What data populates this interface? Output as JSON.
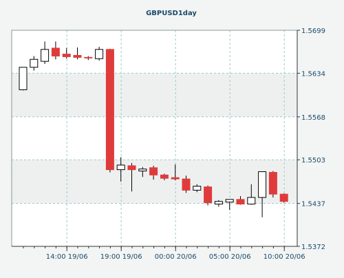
{
  "chart_data": {
    "type": "candlestick",
    "title": "GBPUSD1day",
    "xlabel": "",
    "ylabel": "",
    "ylim": [
      1.5372,
      1.5699
    ],
    "y_ticks": [
      "1.5699",
      "1.5634",
      "1.5568",
      "1.5503",
      "1.5437",
      "1.5372"
    ],
    "x_ticks": [
      "14:00 19/06",
      "19:00 19/06",
      "00:00 20/06",
      "05:00 20/06",
      "10:00 20/06"
    ],
    "grid": true,
    "colors": {
      "background": "#f3f4f4",
      "plot_band_light": "#ffffff",
      "plot_band_shaded": "#eef0f0",
      "grid": "#9cc8c8",
      "axis": "#333333",
      "tick_label": "#1a4a6a",
      "title": "#1a4a6a",
      "up_fill": "#ffffff",
      "down_fill": "#e03b3b",
      "outline": "#000000"
    },
    "candles": [
      {
        "open": 1.5609,
        "high": 1.5643,
        "low": 1.5608,
        "close": 1.5643
      },
      {
        "open": 1.5643,
        "high": 1.566,
        "low": 1.5638,
        "close": 1.5655
      },
      {
        "open": 1.5652,
        "high": 1.5682,
        "low": 1.5648,
        "close": 1.567
      },
      {
        "open": 1.5672,
        "high": 1.5682,
        "low": 1.5655,
        "close": 1.566
      },
      {
        "open": 1.5663,
        "high": 1.5672,
        "low": 1.5656,
        "close": 1.5659
      },
      {
        "open": 1.5661,
        "high": 1.5673,
        "low": 1.5655,
        "close": 1.5658
      },
      {
        "open": 1.5658,
        "high": 1.566,
        "low": 1.5654,
        "close": 1.5657
      },
      {
        "open": 1.5656,
        "high": 1.5674,
        "low": 1.5653,
        "close": 1.567
      },
      {
        "open": 1.567,
        "high": 1.5671,
        "low": 1.5484,
        "close": 1.5488
      },
      {
        "open": 1.5488,
        "high": 1.5507,
        "low": 1.547,
        "close": 1.5495
      },
      {
        "open": 1.5494,
        "high": 1.5498,
        "low": 1.5455,
        "close": 1.5488
      },
      {
        "open": 1.5486,
        "high": 1.5492,
        "low": 1.5477,
        "close": 1.5489
      },
      {
        "open": 1.5491,
        "high": 1.5494,
        "low": 1.5473,
        "close": 1.548
      },
      {
        "open": 1.548,
        "high": 1.5482,
        "low": 1.5472,
        "close": 1.5475
      },
      {
        "open": 1.5476,
        "high": 1.5496,
        "low": 1.5472,
        "close": 1.5474
      },
      {
        "open": 1.5474,
        "high": 1.5479,
        "low": 1.5453,
        "close": 1.5457
      },
      {
        "open": 1.5457,
        "high": 1.5466,
        "low": 1.5454,
        "close": 1.5463
      },
      {
        "open": 1.5462,
        "high": 1.5464,
        "low": 1.5434,
        "close": 1.5438
      },
      {
        "open": 1.5436,
        "high": 1.5442,
        "low": 1.5432,
        "close": 1.544
      },
      {
        "open": 1.5439,
        "high": 1.5443,
        "low": 1.5427,
        "close": 1.5443
      },
      {
        "open": 1.5443,
        "high": 1.5448,
        "low": 1.5435,
        "close": 1.5436
      },
      {
        "open": 1.5436,
        "high": 1.5466,
        "low": 1.5435,
        "close": 1.5446
      },
      {
        "open": 1.5446,
        "high": 1.5485,
        "low": 1.5416,
        "close": 1.5485
      },
      {
        "open": 1.5484,
        "high": 1.5486,
        "low": 1.5446,
        "close": 1.5451
      },
      {
        "open": 1.5451,
        "high": 1.5452,
        "low": 1.5438,
        "close": 1.544
      }
    ]
  }
}
